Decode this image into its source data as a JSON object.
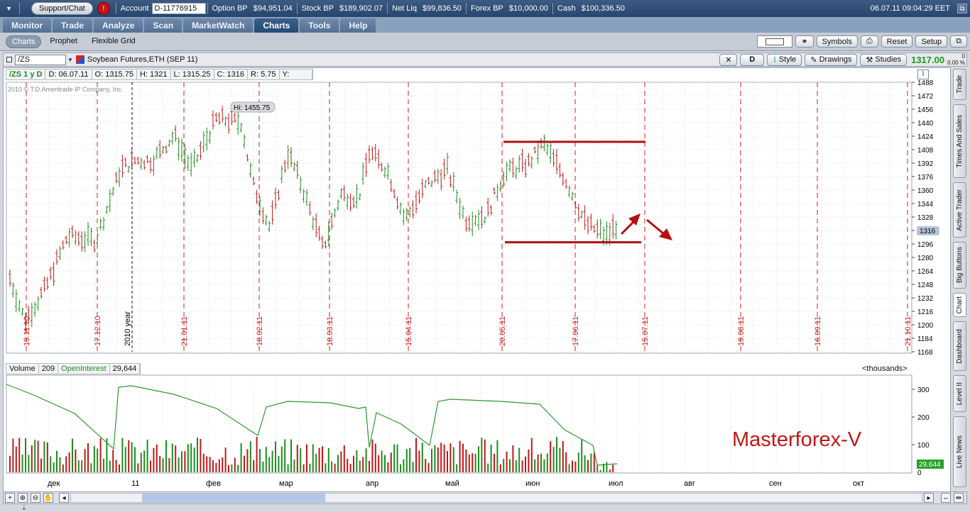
{
  "topbar": {
    "support_label": "Support/Chat",
    "alert_icon": "!",
    "account_label": "Account",
    "account_value": "D-11776915 ...",
    "option_bp_label": "Option BP",
    "option_bp_value": "$94,951.04",
    "stock_bp_label": "Stock BP",
    "stock_bp_value": "$189,902.07",
    "net_liq_label": "Net Liq",
    "net_liq_value": "$99,836.50",
    "forex_bp_label": "Forex BP",
    "forex_bp_value": "$10,000.00",
    "cash_label": "Cash",
    "cash_value": "$100,336.50",
    "datetime": "06.07.11  09:04:29 EET"
  },
  "nav": {
    "tabs": [
      "Monitor",
      "Trade",
      "Analyze",
      "Scan",
      "MarketWatch",
      "Charts",
      "Tools",
      "Help"
    ],
    "active": "Charts"
  },
  "subnav": {
    "tabs": [
      "Charts",
      "Prophet",
      "Flexible Grid"
    ],
    "active": "Charts",
    "buttons": {
      "symbols": "Symbols",
      "reset": "Reset",
      "setup": "Setup"
    }
  },
  "symbol_bar": {
    "symbol": "/ZS",
    "description": "Soybean Futures,ETH (SEP 11)",
    "period": "D",
    "style_label": "Style",
    "drawings_label": "Drawings",
    "studies_label": "Studies",
    "last_price": "1317.00",
    "change_pct": "0.00 %",
    "change_val": "0"
  },
  "info": {
    "period": "/ZS 1 y D",
    "date": "D: 06.07.11",
    "open": "O: 1315.75",
    "high": "H: 1321",
    "low": "L: 1315.25",
    "close": "C: 1316",
    "range": "R: 5.75",
    "y": "Y:"
  },
  "chart_texts": {
    "copyright": "2010 © T.D.Ameritrade IP Company, Inc.",
    "hi_label": "Hi: 1455.75",
    "price_tag": "1316",
    "watermark": "Masterforex-V",
    "year_marker": "2010 year"
  },
  "volume": {
    "label": "Volume",
    "value": "209",
    "oi_label": "OpenInterest",
    "oi_value": "29,644",
    "units": "<thousands>",
    "oi_tag": "29.644"
  },
  "rail_tabs": [
    "Trade",
    "Times And Sales",
    "Active Trader",
    "Big Buttons",
    "Chart",
    "Dashboard",
    "Level II",
    "Live News"
  ],
  "chart_data": {
    "type": "candlestick",
    "price_axis": {
      "min": 1168,
      "max": 1488,
      "ticks": [
        1488,
        1472,
        1456,
        1440,
        1424,
        1408,
        1392,
        1376,
        1360,
        1344,
        1328,
        1312,
        1296,
        1280,
        1264,
        1248,
        1232,
        1216,
        1200,
        1184,
        1168
      ]
    },
    "date_markers": [
      "19.11.10",
      "17.12.10",
      "21.01.11",
      "18.02.11",
      "18.03.11",
      "15.04.11",
      "20.05.11",
      "17.06.11",
      "15.07.11",
      "19.08.11",
      "16.09.11",
      "21.10.11"
    ],
    "volume_axis_ticks": [
      300,
      200,
      100,
      0
    ],
    "month_labels": [
      "дек",
      "11",
      "фев",
      "мар",
      "апр",
      "май",
      "июн",
      "июл",
      "авг",
      "сен",
      "окт"
    ],
    "highlight": {
      "high_line": 1424,
      "low_line": 1298
    }
  },
  "colors": {
    "up": "#1e8c1e",
    "down": "#c01818",
    "marker": "#d21f1f",
    "line": "#2c9a2c",
    "accent": "#2b9d2b"
  }
}
